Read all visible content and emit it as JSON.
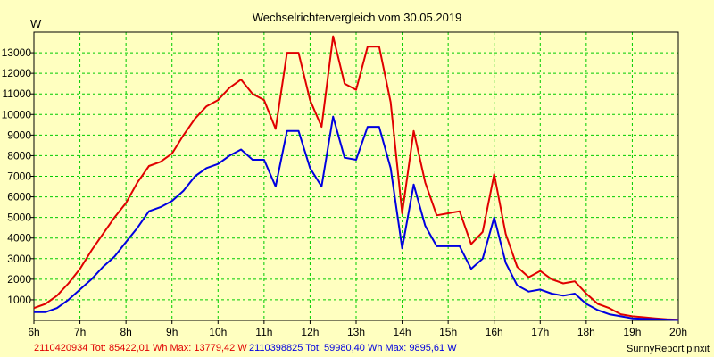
{
  "chart_data": {
    "type": "line",
    "title": "Wechselrichtervergleich vom 30.05.2019",
    "ylabel": "W",
    "xlabel": "",
    "xlim": [
      6,
      20
    ],
    "ylim": [
      0,
      14000
    ],
    "x_ticks": [
      6,
      7,
      8,
      9,
      10,
      11,
      12,
      13,
      14,
      15,
      16,
      17,
      18,
      19,
      20
    ],
    "x_tick_labels": [
      "6h",
      "7h",
      "8h",
      "9h",
      "10h",
      "11h",
      "12h",
      "13h",
      "14h",
      "15h",
      "16h",
      "17h",
      "18h",
      "19h",
      "20h"
    ],
    "y_ticks": [
      1000,
      2000,
      3000,
      4000,
      5000,
      6000,
      7000,
      8000,
      9000,
      10000,
      11000,
      12000,
      13000
    ],
    "grid": true,
    "series": [
      {
        "name": "2110420934",
        "color": "#e00000",
        "summary": "2110420934 Tot: 85422,01 Wh Max: 13779,42 W",
        "x": [
          6.0,
          6.25,
          6.5,
          6.75,
          7.0,
          7.25,
          7.5,
          7.75,
          8.0,
          8.25,
          8.5,
          8.75,
          9.0,
          9.25,
          9.5,
          9.75,
          10.0,
          10.25,
          10.5,
          10.75,
          11.0,
          11.25,
          11.5,
          11.75,
          12.0,
          12.25,
          12.5,
          12.75,
          13.0,
          13.25,
          13.5,
          13.75,
          14.0,
          14.25,
          14.5,
          14.75,
          15.0,
          15.25,
          15.5,
          15.75,
          16.0,
          16.25,
          16.5,
          16.75,
          17.0,
          17.25,
          17.5,
          17.75,
          18.0,
          18.25,
          18.5,
          18.75,
          19.0,
          19.25,
          19.5,
          19.75,
          20.0
        ],
        "values": [
          600,
          800,
          1200,
          1800,
          2500,
          3400,
          4200,
          5000,
          5700,
          6700,
          7500,
          7700,
          8100,
          9000,
          9800,
          10400,
          10700,
          11300,
          11700,
          11000,
          10700,
          9300,
          13000,
          13000,
          10700,
          9400,
          13800,
          11500,
          11200,
          13300,
          13300,
          10600,
          5200,
          9200,
          6700,
          5100,
          5200,
          5300,
          3700,
          4300,
          7100,
          4200,
          2600,
          2100,
          2400,
          2000,
          1800,
          1900,
          1300,
          800,
          600,
          300,
          200,
          150,
          100,
          50,
          30
        ]
      },
      {
        "name": "2110398825",
        "color": "#0000e0",
        "summary": "2110398825 Tot: 59980,40 Wh Max: 9895,61 W",
        "x": [
          6.0,
          6.25,
          6.5,
          6.75,
          7.0,
          7.25,
          7.5,
          7.75,
          8.0,
          8.25,
          8.5,
          8.75,
          9.0,
          9.25,
          9.5,
          9.75,
          10.0,
          10.25,
          10.5,
          10.75,
          11.0,
          11.25,
          11.5,
          11.75,
          12.0,
          12.25,
          12.5,
          12.75,
          13.0,
          13.25,
          13.5,
          13.75,
          14.0,
          14.25,
          14.5,
          14.75,
          15.0,
          15.25,
          15.5,
          15.75,
          16.0,
          16.25,
          16.5,
          16.75,
          17.0,
          17.25,
          17.5,
          17.75,
          18.0,
          18.25,
          18.5,
          18.75,
          19.0,
          19.25,
          19.5,
          19.75,
          20.0
        ],
        "values": [
          400,
          400,
          600,
          1000,
          1500,
          2000,
          2600,
          3100,
          3800,
          4500,
          5300,
          5500,
          5800,
          6300,
          7000,
          7400,
          7600,
          8000,
          8300,
          7800,
          7800,
          6500,
          9200,
          9200,
          7400,
          6500,
          9900,
          7900,
          7800,
          9400,
          9400,
          7400,
          3500,
          6600,
          4600,
          3600,
          3600,
          3600,
          2500,
          3000,
          5000,
          2800,
          1700,
          1400,
          1500,
          1300,
          1200,
          1300,
          800,
          500,
          300,
          200,
          100,
          80,
          60,
          40,
          20
        ]
      }
    ],
    "credit": "SunnyReport pinxit"
  }
}
